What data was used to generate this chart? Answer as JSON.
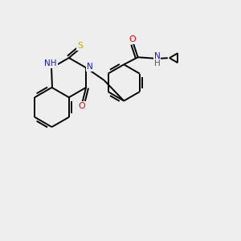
{
  "bg_color": "#eeeeee",
  "atom_colors": {
    "C": "#000000",
    "N": "#1414cc",
    "O": "#ff0000",
    "S": "#bbaa00",
    "H": "#336666"
  },
  "bond_color": "#000000",
  "bond_width": 1.4
}
